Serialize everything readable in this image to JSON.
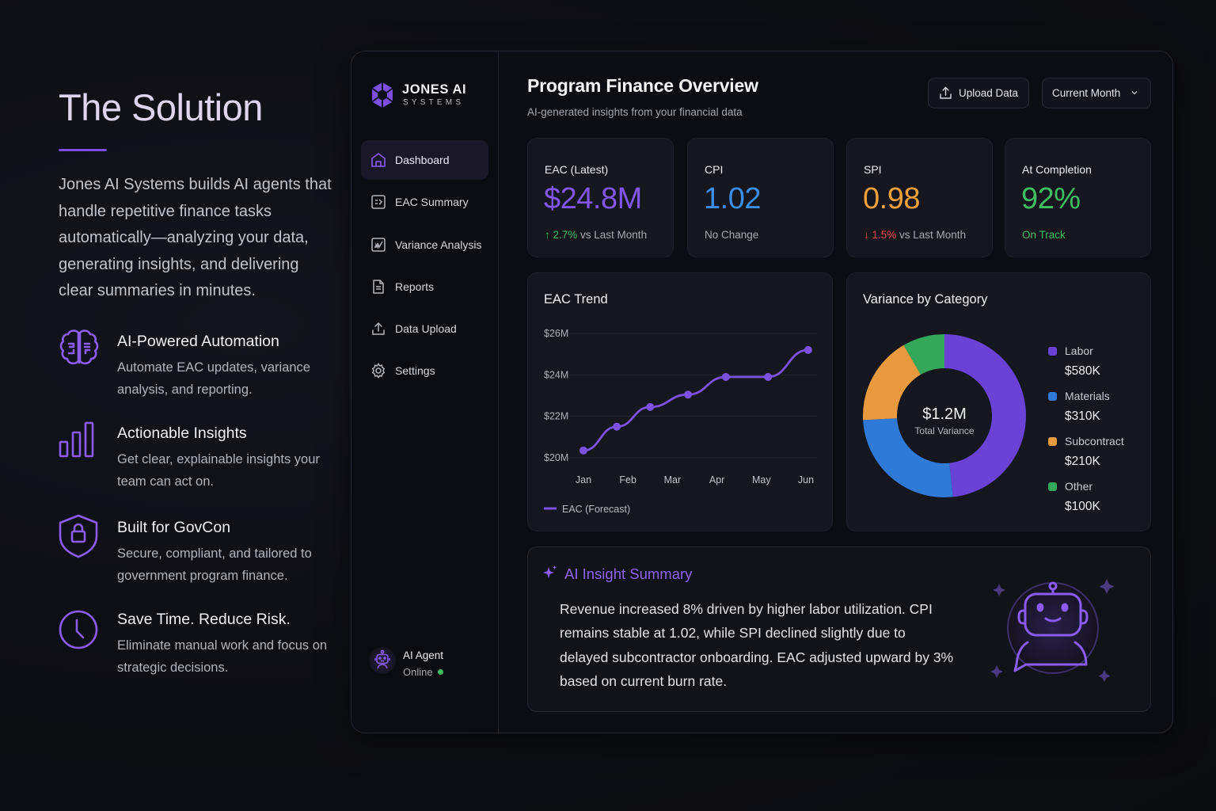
{
  "left": {
    "title": "The Solution",
    "intro": "Jones AI Systems builds AI agents that handle repetitive finance tasks automatically—analyzing your data, generating insights, and delivering clear summaries in minutes.",
    "features": [
      {
        "icon": "brain-icon",
        "title": "AI-Powered Automation",
        "desc": "Automate EAC updates, variance analysis, and reporting."
      },
      {
        "icon": "bar-chart-icon",
        "title": "Actionable Insights",
        "desc": "Get clear, explainable insights your team can act on."
      },
      {
        "icon": "shield-lock-icon",
        "title": "Built for GovCon",
        "desc": "Secure, compliant, and tailored to government program finance."
      },
      {
        "icon": "clock-icon",
        "title": "Save Time. Reduce Risk.",
        "desc": "Eliminate manual work and focus on strategic decisions."
      }
    ]
  },
  "brand": {
    "name": "JONES AI",
    "sub": "SYSTEMS",
    "accent": "#7b4fe0"
  },
  "sidebar": {
    "items": [
      {
        "label": "Dashboard",
        "icon": "home-icon",
        "active": true
      },
      {
        "label": "EAC Summary",
        "icon": "summary-icon"
      },
      {
        "label": "Variance Analysis",
        "icon": "variance-chart-icon"
      },
      {
        "label": "Reports",
        "icon": "document-icon"
      },
      {
        "label": "Data Upload",
        "icon": "upload-icon"
      },
      {
        "label": "Settings",
        "icon": "gear-icon"
      }
    ],
    "agent": {
      "name": "AI Agent",
      "status": "Online",
      "status_color": "#3fbf62"
    }
  },
  "header": {
    "title": "Program Finance Overview",
    "subtitle": "AI-generated insights from your financial data",
    "upload_label": "Upload Data",
    "period_selected": "Current Month"
  },
  "kpis": [
    {
      "label": "EAC (Latest)",
      "value": "$24.8M",
      "color": "#8256ea",
      "delta": "↑ 2.7%",
      "delta_color": "#3fbf62",
      "sub": " vs Last Month"
    },
    {
      "label": "CPI",
      "value": "1.02",
      "color": "#3b8ee8",
      "delta": "",
      "delta_color": "",
      "sub": "No Change"
    },
    {
      "label": "SPI",
      "value": "0.98",
      "color": "#f0a03a",
      "delta": "↓ 1.5%",
      "delta_color": "#ef4b45",
      "sub": " vs Last Month"
    },
    {
      "label": "At Completion",
      "value": "92%",
      "color": "#3fbf62",
      "delta": "On Track",
      "delta_color": "#3fbf62",
      "sub": ""
    }
  ],
  "chart_data": [
    {
      "type": "line",
      "title": "EAC Trend",
      "x_tick_labels": [
        "Jan",
        "Feb",
        "Mar",
        "Apr",
        "May",
        "Jun"
      ],
      "x": [
        0,
        0.75,
        1.5,
        2.35,
        3.2,
        4.15,
        5.05
      ],
      "series": [
        {
          "name": "EAC (Forecast)",
          "values": [
            20.35,
            21.5,
            22.45,
            23.05,
            23.9,
            23.9,
            25.2
          ],
          "color": "#7b52e0"
        }
      ],
      "y_ticks": [
        20,
        22,
        24,
        26
      ],
      "y_tick_labels": [
        "$20M",
        "$22M",
        "$24M",
        "$26M"
      ],
      "ylim": [
        20,
        26
      ],
      "grid": true,
      "legend": "bottom-left",
      "unit": "$M"
    },
    {
      "type": "pie",
      "title": "Variance by Category",
      "center_value": "$1.2M",
      "center_label": "Total Variance",
      "slices": [
        {
          "label": "Labor",
          "value": 580,
          "display": "$580K",
          "color": "#6a43d6"
        },
        {
          "label": "Materials",
          "value": 310,
          "display": "$310K",
          "color": "#2f7ad6"
        },
        {
          "label": "Subcontract",
          "value": 210,
          "display": "$210K",
          "color": "#e99a3e"
        },
        {
          "label": "Other",
          "value": 100,
          "display": "$100K",
          "color": "#34a85a"
        }
      ],
      "legend": "right"
    }
  ],
  "insight": {
    "title": "AI Insight Summary",
    "text": "Revenue increased 8% driven by higher labor utilization. CPI remains stable at 1.02, while SPI declined slightly due to delayed subcontractor onboarding. EAC adjusted upward by 3% based on current burn rate."
  }
}
